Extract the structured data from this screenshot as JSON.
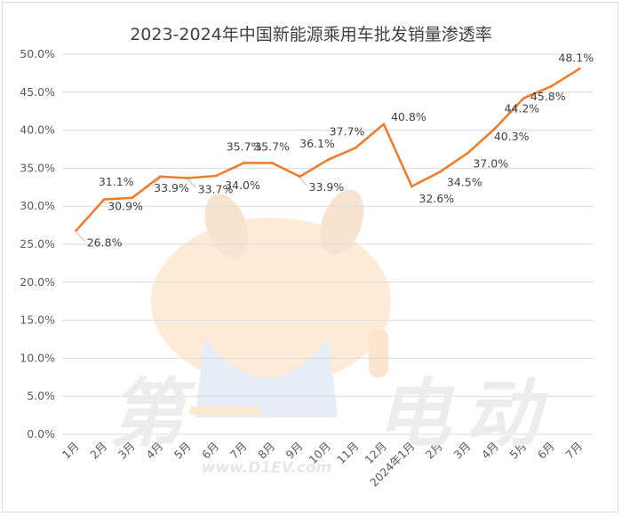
{
  "chart_data": {
    "type": "line",
    "title": "2023-2024年中国新能源乘用车批发销量渗透率",
    "xlabel": "",
    "ylabel": "",
    "categories": [
      "1月",
      "2月",
      "3月",
      "4月",
      "5月",
      "6月",
      "7月",
      "8月",
      "9月",
      "10月",
      "11月",
      "12月",
      "2024年1月",
      "2月",
      "3月",
      "4月",
      "5月",
      "6月",
      "7月"
    ],
    "series": [
      {
        "values": [
          26.8,
          30.9,
          31.1,
          33.9,
          33.7,
          34.0,
          35.7,
          35.7,
          33.9,
          36.1,
          37.7,
          40.8,
          32.6,
          34.5,
          37.0,
          40.3,
          44.2,
          45.8,
          48.1
        ],
        "labels": [
          "26.8%",
          "30.9%",
          "31.1%",
          "33.9%",
          "33.7%",
          "34.0%",
          "35.7%",
          "35.7%",
          "33.9%",
          "36.1%",
          "37.7%",
          "40.8%",
          "32.6%",
          "34.5%",
          "37.0%",
          "40.3%",
          "44.2%",
          "45.8%",
          "48.1%"
        ],
        "color": "#ed7d31"
      }
    ],
    "yticks": [
      "0.0%",
      "5.0%",
      "10.0%",
      "15.0%",
      "20.0%",
      "25.0%",
      "30.0%",
      "35.0%",
      "40.0%",
      "45.0%",
      "50.0%"
    ],
    "ylim": [
      0,
      50
    ],
    "grid": true,
    "legend": "none"
  },
  "watermark": {
    "text": "第一电动",
    "url": "www.D1EV.com",
    "colors": {
      "gray": "#ececec",
      "orange": "#fde8d2"
    }
  }
}
